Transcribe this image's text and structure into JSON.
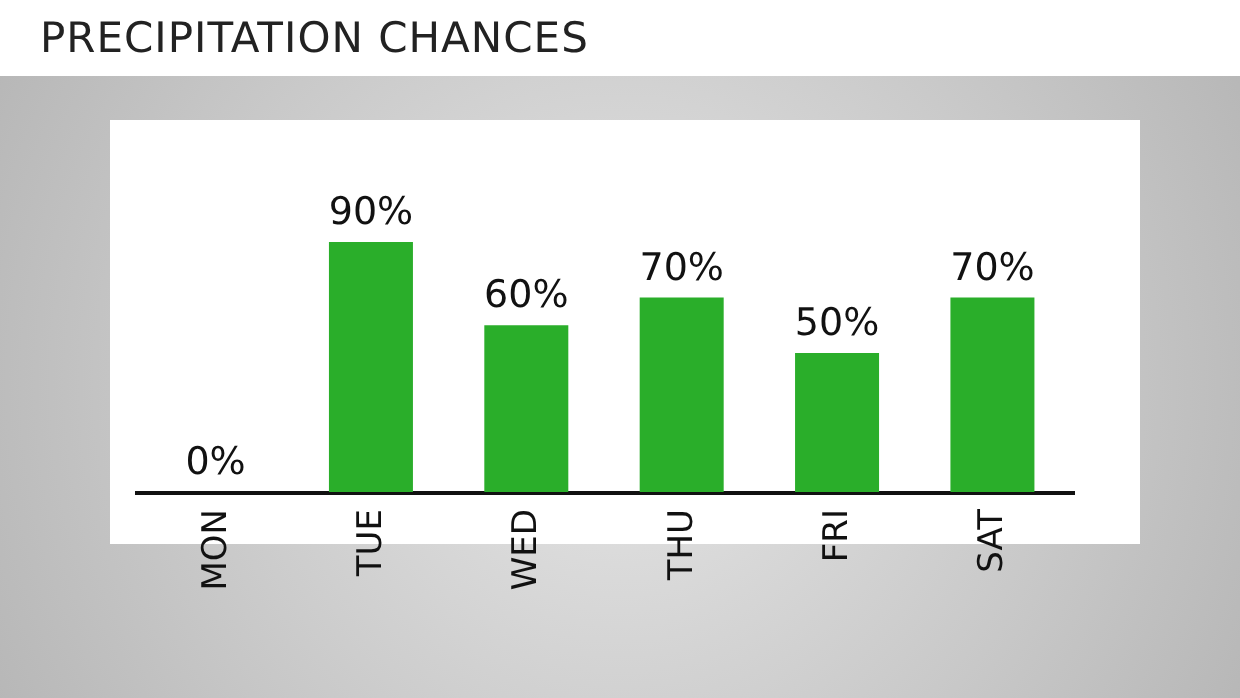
{
  "chart_data": {
    "type": "bar",
    "title": "PRECIPITATION CHANCES",
    "categories": [
      "MON",
      "TUE",
      "WED",
      "THU",
      "FRI",
      "SAT"
    ],
    "values": [
      0,
      90,
      60,
      70,
      50,
      70
    ],
    "value_labels": [
      "0%",
      "90%",
      "60%",
      "70%",
      "50%",
      "70%"
    ],
    "color": "#2aae2a"
  }
}
